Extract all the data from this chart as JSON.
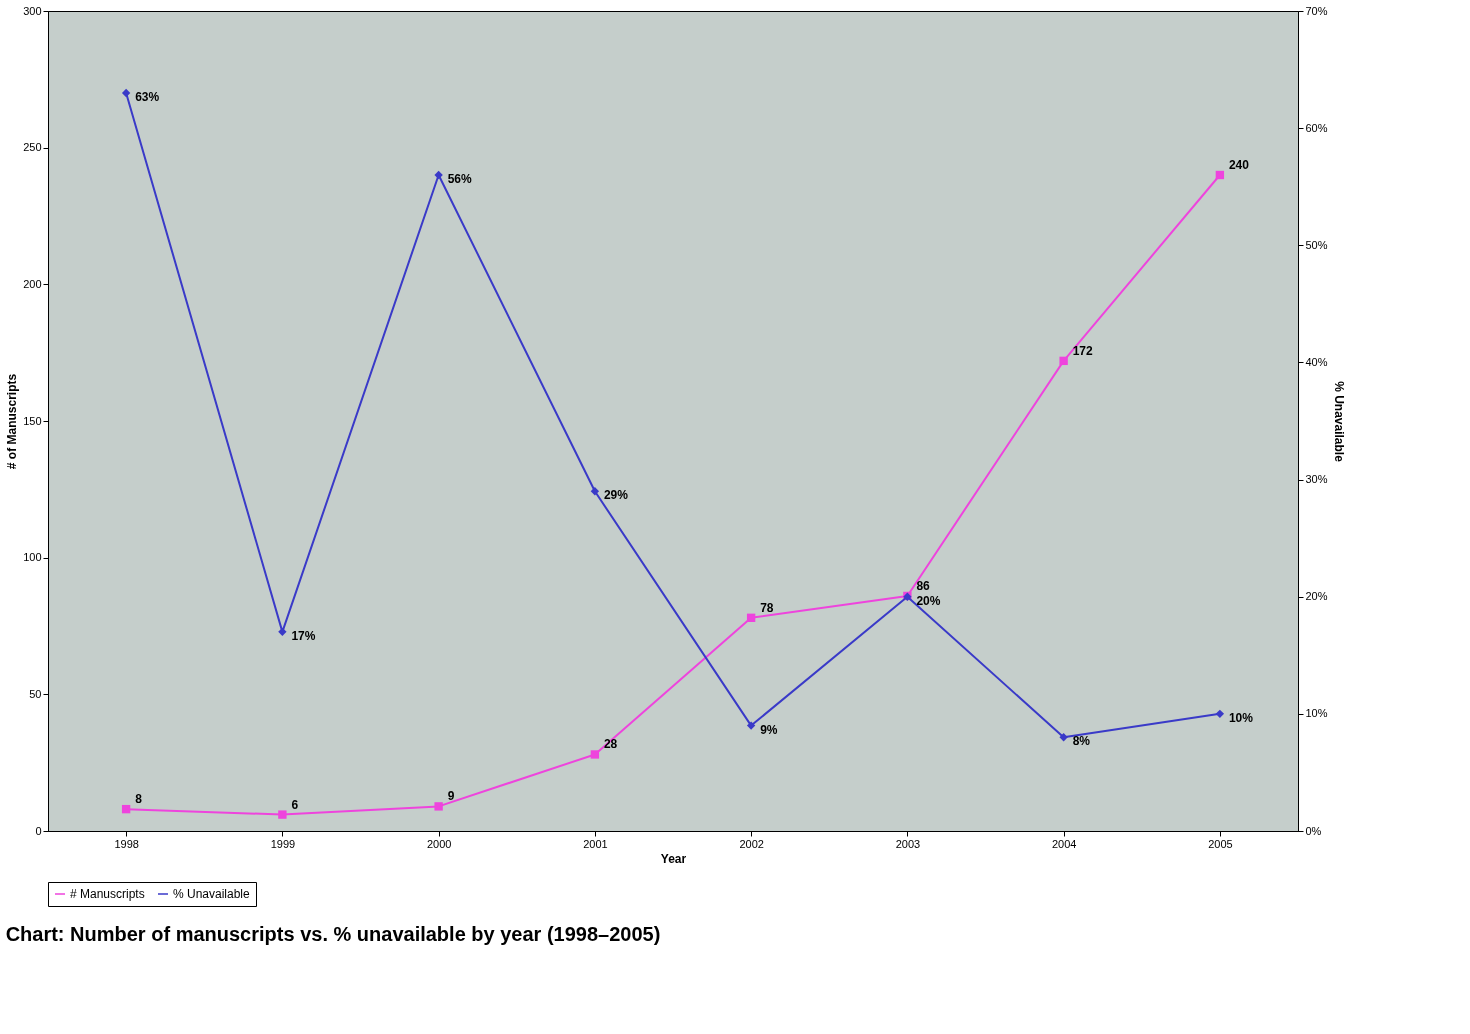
{
  "chart_data": {
    "type": "line",
    "title": "Chart: Number of manuscripts vs. % unavailable by year (1998–2005)",
    "xlabel": "Year",
    "ylabel": "# of Manuscripts",
    "y2label": "% Unavailable",
    "categories": [
      "1998",
      "1999",
      "2000",
      "2001",
      "2002",
      "2003",
      "2004",
      "2005"
    ],
    "series": [
      {
        "name": "# Manuscripts",
        "color": "#ee44dd",
        "marker": "square",
        "values": [
          8,
          6,
          9,
          28,
          78,
          86,
          172,
          240
        ],
        "value_labels": [
          "8",
          "6",
          "9",
          "28",
          "78",
          "86",
          "172",
          "240"
        ]
      },
      {
        "name": "% Unavailable",
        "color": "#3a3ac8",
        "marker": "diamond",
        "axis": "y2",
        "values": [
          63,
          17,
          56,
          29,
          9,
          20,
          8,
          10
        ],
        "value_labels": [
          "63%",
          "17%",
          "56%",
          "29%",
          "9%",
          "20%",
          "8%",
          "10%"
        ]
      }
    ],
    "ylim": [
      0,
      300
    ],
    "yticks": [
      0,
      50,
      100,
      150,
      200,
      250,
      300
    ],
    "y2lim": [
      0,
      70
    ],
    "y2ticks": [
      {
        "value": 0,
        "label": "0%"
      },
      {
        "value": 10,
        "label": "10%"
      },
      {
        "value": 20,
        "label": "20%"
      },
      {
        "value": 30,
        "label": "30%"
      },
      {
        "value": 40,
        "label": "40%"
      },
      {
        "value": 50,
        "label": "50%"
      },
      {
        "value": 60,
        "label": "60%"
      },
      {
        "value": 70,
        "label": "70%"
      }
    ],
    "grid": false,
    "legend": "bottom",
    "line_style": "solid"
  }
}
